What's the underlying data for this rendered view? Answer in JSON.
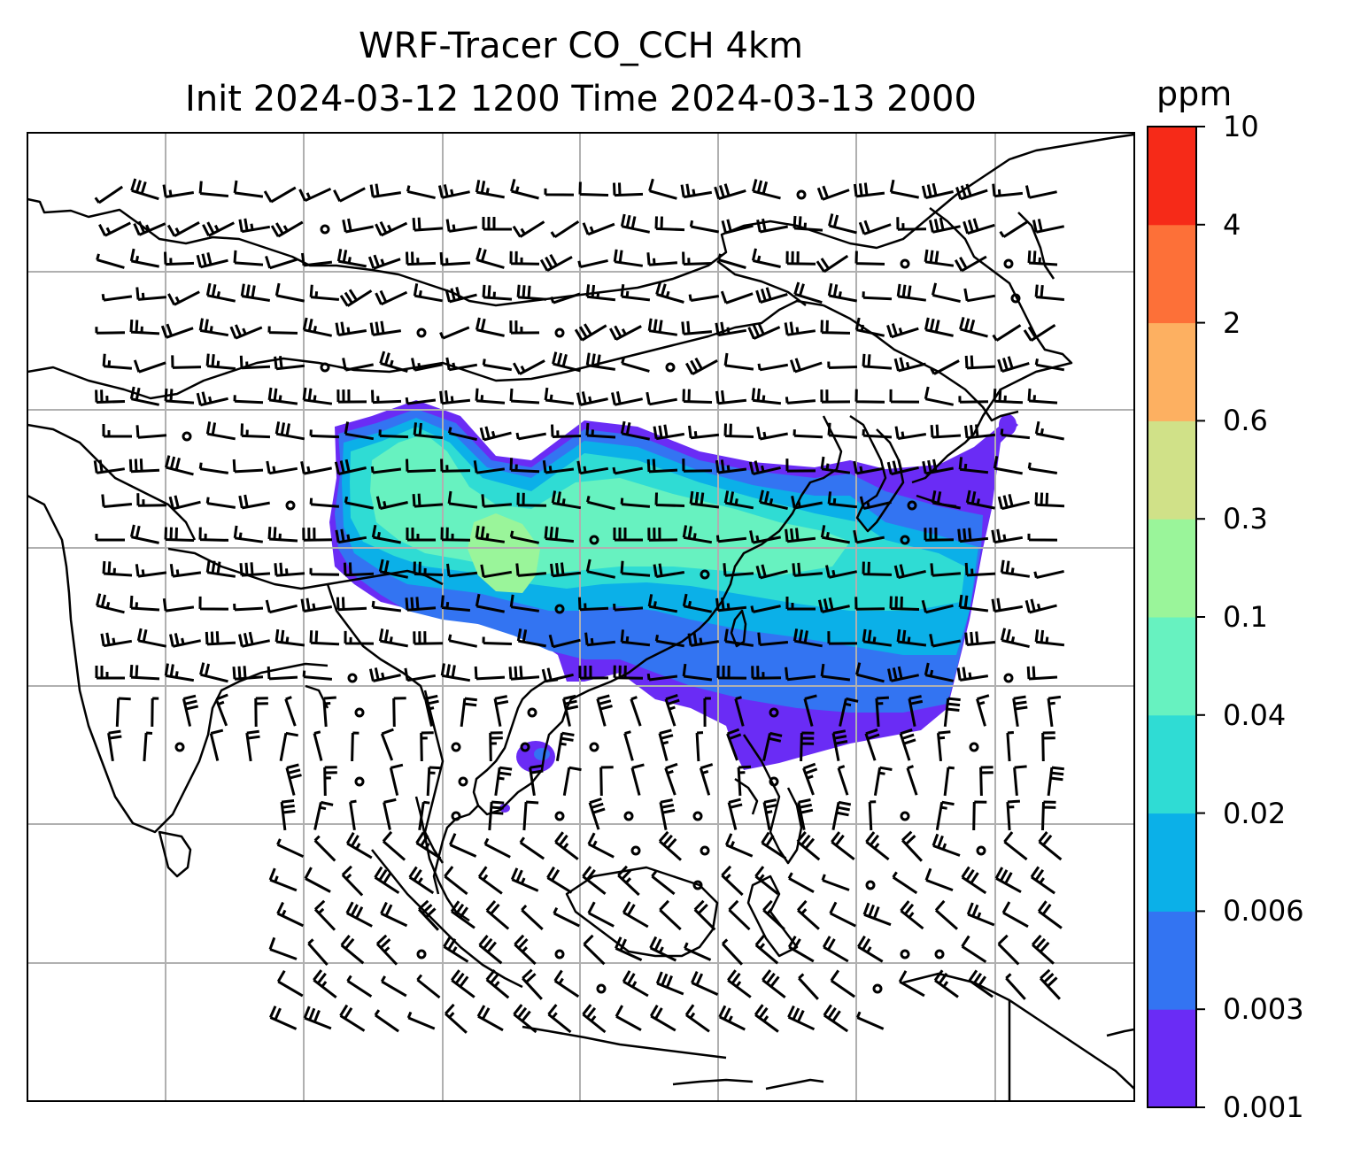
{
  "title": {
    "line1": "WRF-Tracer CO_CCH 4km",
    "line2": "Init 2024-03-12 1200 Time 2024-03-13 2000"
  },
  "colorbar": {
    "unit": "ppm",
    "levels": [
      "0.001",
      "0.003",
      "0.006",
      "0.02",
      "0.04",
      "0.1",
      "0.3",
      "0.6",
      "2",
      "4",
      "10"
    ],
    "colors": [
      "#6a2cf5",
      "#3374f2",
      "#0bb0e8",
      "#2fdcd4",
      "#67f2c0",
      "#9af59a",
      "#d0e188",
      "#fdb061",
      "#fd7038",
      "#f62a18"
    ]
  },
  "map": {
    "type": "tracer concentration with wind barbs",
    "coastline_color": "#000000",
    "grid_color": "#b0b0b0",
    "plume_palette_index_max": 5
  }
}
